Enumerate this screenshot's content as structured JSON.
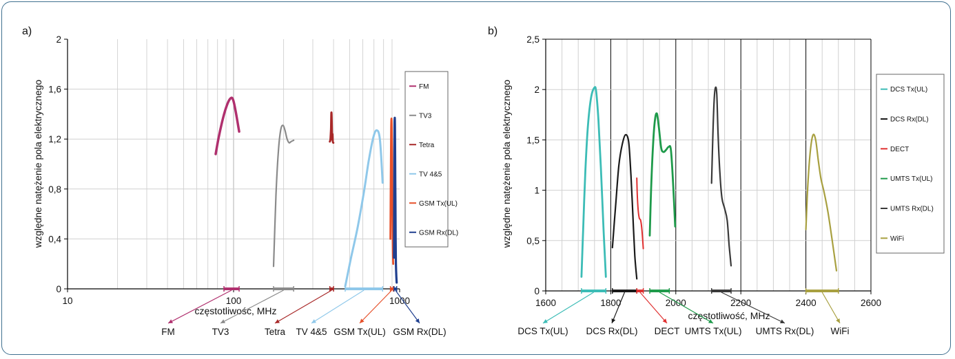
{
  "colors": {
    "frame": "#3f6f8f",
    "grid": "#c8c8c8",
    "grid_major": "#000000"
  },
  "chart_data": [
    {
      "type": "line",
      "panel_label": "a)",
      "xlabel": "częstotliwość, MHz",
      "ylabel": "względne natężenie pola elektrycznego",
      "x_scale": "log",
      "xlim": [
        10,
        1000
      ],
      "ylim": [
        0,
        2
      ],
      "x_ticks": [
        "10",
        "100",
        "1000"
      ],
      "y_ticks": [
        "0",
        "0,4",
        "0,8",
        "1,2",
        "1,6",
        "2"
      ],
      "grid": true,
      "legend_position": "right",
      "series": [
        {
          "name": "FM",
          "color": "#b0306e",
          "width": 3.5,
          "x": [
            78,
            81,
            85,
            90,
            95,
            99,
            103,
            108
          ],
          "y": [
            1.08,
            1.2,
            1.33,
            1.45,
            1.52,
            1.52,
            1.42,
            1.26
          ]
        },
        {
          "name": "TV3",
          "color": "#8a8a8a",
          "width": 2.2,
          "x": [
            174,
            180,
            186,
            192,
            198,
            204,
            210,
            216,
            222,
            230
          ],
          "y": [
            0.18,
            0.75,
            1.1,
            1.27,
            1.31,
            1.27,
            1.2,
            1.17,
            1.18,
            1.19
          ]
        },
        {
          "name": "Tetra",
          "color": "#a82828",
          "width": 3,
          "x": [
            380,
            383,
            386,
            388,
            390,
            392,
            394,
            396,
            399
          ],
          "y": [
            1.18,
            1.2,
            1.28,
            1.41,
            1.36,
            1.2,
            1.24,
            1.18,
            1.17
          ]
        },
        {
          "name": "TV 4&5",
          "color": "#8fc8ea",
          "width": 3,
          "x": [
            470,
            510,
            560,
            610,
            650,
            690,
            725,
            760,
            790
          ],
          "y": [
            0.02,
            0.25,
            0.5,
            0.78,
            1.02,
            1.2,
            1.27,
            1.2,
            0.85
          ]
        },
        {
          "name": "GSM Tx(UL)",
          "color": "#e6502a",
          "width": 2.8,
          "x": [
            880,
            884,
            888,
            892,
            896,
            900,
            904,
            908,
            912,
            915
          ],
          "y": [
            0.4,
            0.9,
            1.25,
            1.36,
            1.32,
            1.1,
            0.7,
            0.4,
            0.25,
            0.2
          ]
        },
        {
          "name": "GSM Rx(DL)",
          "color": "#1f3f8f",
          "width": 3.2,
          "x": [
            925,
            928,
            931,
            934,
            937,
            940,
            943,
            946,
            950,
            955,
            960
          ],
          "y": [
            0.25,
            0.8,
            1.28,
            1.37,
            1.3,
            1.05,
            0.7,
            0.4,
            0.2,
            0.1,
            0.05
          ]
        }
      ],
      "bands": [
        {
          "label": "FM",
          "color": "#b0306e",
          "x_start": 87.5,
          "x_end": 108
        },
        {
          "label": "TV3",
          "color": "#8a8a8a",
          "x_start": 174,
          "x_end": 230
        },
        {
          "label": "Tetra",
          "color": "#a82828",
          "x_start": 380,
          "x_end": 400
        },
        {
          "label": "TV 4&5",
          "color": "#8fc8ea",
          "x_start": 470,
          "x_end": 790
        },
        {
          "label": "GSM Tx(UL)",
          "color": "#e6502a",
          "x_start": 880,
          "x_end": 915
        },
        {
          "label": "GSM Rx(DL)",
          "color": "#1f3f8f",
          "x_start": 925,
          "x_end": 960
        }
      ]
    },
    {
      "type": "line",
      "panel_label": "b)",
      "xlabel": "częstotliwość, MHz",
      "ylabel": "względne natężenie pola elektrycznego",
      "x_scale": "linear",
      "xlim": [
        1600,
        2600
      ],
      "ylim": [
        0,
        2.5
      ],
      "x_ticks": [
        "1600",
        "1800",
        "2000",
        "2200",
        "2400",
        "2600"
      ],
      "y_ticks": [
        "0",
        "0,5",
        "1",
        "1,5",
        "2",
        "2,5"
      ],
      "grid": true,
      "legend_position": "right",
      "series": [
        {
          "name": "DCS Tx(UL)",
          "color": "#3cbcb6",
          "width": 2.8,
          "x": [
            1710,
            1715,
            1722,
            1730,
            1740,
            1750,
            1755,
            1762,
            1770,
            1778,
            1785
          ],
          "y": [
            0.14,
            0.6,
            1.2,
            1.65,
            1.93,
            2.02,
            1.98,
            1.7,
            1.2,
            0.6,
            0.14
          ]
        },
        {
          "name": "DCS Rx(DL)",
          "color": "#1a1a1a",
          "width": 2.2,
          "x": [
            1805,
            1815,
            1825,
            1835,
            1845,
            1855,
            1862,
            1868,
            1874,
            1880
          ],
          "y": [
            0.43,
            0.85,
            1.25,
            1.45,
            1.55,
            1.48,
            1.15,
            0.75,
            0.35,
            0.12
          ]
        },
        {
          "name": "DECT",
          "color": "#e03030",
          "width": 2,
          "x": [
            1880,
            1882,
            1885,
            1888,
            1892,
            1896,
            1900
          ],
          "y": [
            1.12,
            0.92,
            0.78,
            0.72,
            0.7,
            0.6,
            0.42
          ]
        },
        {
          "name": "UMTS Tx(UL)",
          "color": "#1e9a4a",
          "width": 2.8,
          "x": [
            1920,
            1924,
            1930,
            1936,
            1942,
            1948,
            1955,
            1962,
            1970,
            1978,
            1985,
            1992,
            1998
          ],
          "y": [
            0.55,
            1.0,
            1.45,
            1.7,
            1.76,
            1.62,
            1.42,
            1.38,
            1.4,
            1.43,
            1.4,
            1.05,
            0.64
          ]
        },
        {
          "name": "UMTS Rx(DL)",
          "color": "#3a3a3a",
          "width": 2.2,
          "x": [
            2110,
            2114,
            2118,
            2122,
            2126,
            2130,
            2136,
            2142,
            2150,
            2158,
            2164,
            2170
          ],
          "y": [
            1.07,
            1.55,
            1.9,
            2.02,
            1.95,
            1.55,
            1.15,
            0.92,
            0.82,
            0.7,
            0.45,
            0.25
          ]
        },
        {
          "name": "WiFi",
          "color": "#a8a040",
          "width": 2.2,
          "x": [
            2400,
            2406,
            2414,
            2422,
            2430,
            2438,
            2446,
            2456,
            2468,
            2480,
            2494
          ],
          "y": [
            0.61,
            1.05,
            1.4,
            1.55,
            1.5,
            1.3,
            1.12,
            0.98,
            0.78,
            0.52,
            0.2
          ]
        }
      ],
      "bands": [
        {
          "label": "DCS Tx(UL)",
          "color": "#3cbcb6",
          "x_start": 1710,
          "x_end": 1785
        },
        {
          "label": "DCS Rx(DL)",
          "color": "#1a1a1a",
          "x_start": 1805,
          "x_end": 1880
        },
        {
          "label": "DECT",
          "color": "#e03030",
          "x_start": 1880,
          "x_end": 1900
        },
        {
          "label": "UMTS Tx(UL)",
          "color": "#1e9a4a",
          "x_start": 1920,
          "x_end": 1980
        },
        {
          "label": "UMTS Rx(DL)",
          "color": "#3a3a3a",
          "x_start": 2110,
          "x_end": 2170
        },
        {
          "label": "WiFi",
          "color": "#a8a040",
          "x_start": 2400,
          "x_end": 2500
        }
      ]
    }
  ]
}
